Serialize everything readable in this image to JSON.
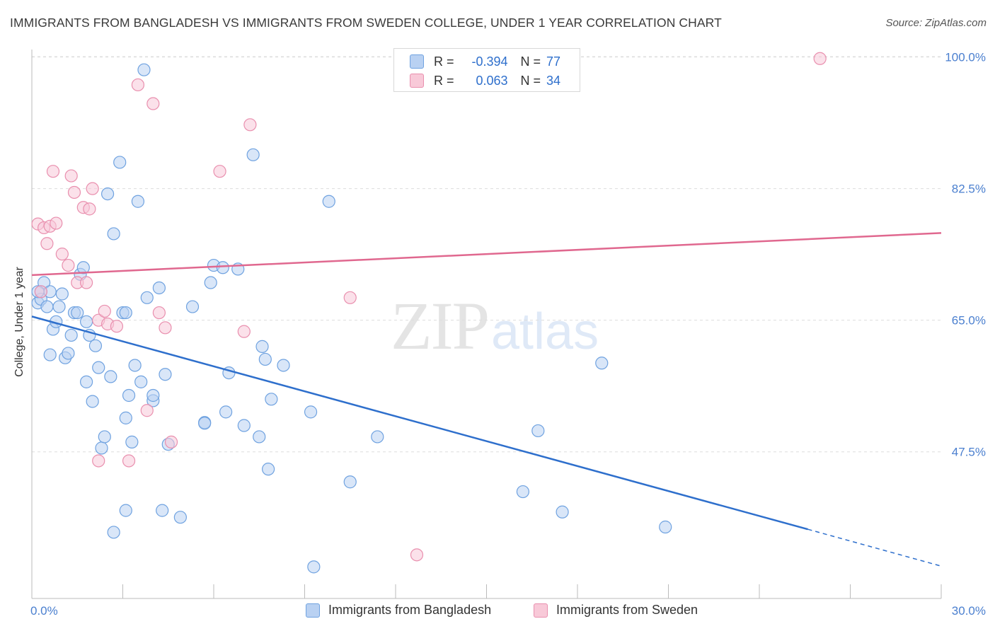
{
  "title": "IMMIGRANTS FROM BANGLADESH VS IMMIGRANTS FROM SWEDEN COLLEGE, UNDER 1 YEAR CORRELATION CHART",
  "source": "Source: ZipAtlas.com",
  "watermark": {
    "zip": "ZIP",
    "atlas": "atlas"
  },
  "legend_top": {
    "rows": [
      {
        "r_label": "R =",
        "r_value": "-0.394",
        "n_label": "N =",
        "n_value": "77"
      },
      {
        "r_label": "R =",
        "r_value": "0.063",
        "n_label": "N =",
        "n_value": "34"
      }
    ]
  },
  "chart_data": {
    "type": "scatter",
    "title": "IMMIGRANTS FROM BANGLADESH VS IMMIGRANTS FROM SWEDEN COLLEGE, UNDER 1 YEAR CORRELATION CHART",
    "xlabel": "",
    "ylabel": "College, Under 1 year",
    "xlim": [
      0,
      30
    ],
    "ylim": [
      28,
      101
    ],
    "x_tick_labels": [
      "0.0%",
      "30.0%"
    ],
    "y_ticks": [
      {
        "value": 100,
        "label": "100.0%"
      },
      {
        "value": 82.5,
        "label": "82.5%"
      },
      {
        "value": 65,
        "label": "65.0%"
      },
      {
        "value": 47.5,
        "label": "47.5%"
      }
    ],
    "grid": true,
    "legend_position": "bottom",
    "series": [
      {
        "name": "Immigrants from Bangladesh",
        "color": "#6fa2e0",
        "fill": "#b9d1f2",
        "r": -0.394,
        "n": 77,
        "trend": {
          "x0": 0,
          "y0": 65.5,
          "x1": 25.6,
          "y1": 37.2,
          "dash_to_x": 30,
          "dash_to_y": 32.3
        },
        "points": [
          [
            0.2,
            67.3
          ],
          [
            0.3,
            68.8
          ],
          [
            0.3,
            67.8
          ],
          [
            0.4,
            70.0
          ],
          [
            0.5,
            66.8
          ],
          [
            0.6,
            68.8
          ],
          [
            0.6,
            60.4
          ],
          [
            0.7,
            63.8
          ],
          [
            0.8,
            64.8
          ],
          [
            0.9,
            66.8
          ],
          [
            1.0,
            68.5
          ],
          [
            1.1,
            60.0
          ],
          [
            1.2,
            60.6
          ],
          [
            1.3,
            63.0
          ],
          [
            1.4,
            66.0
          ],
          [
            1.5,
            66.0
          ],
          [
            1.6,
            71.1
          ],
          [
            1.7,
            72.0
          ],
          [
            1.8,
            64.8
          ],
          [
            1.8,
            56.8
          ],
          [
            1.9,
            63.0
          ],
          [
            2.0,
            54.2
          ],
          [
            2.1,
            61.6
          ],
          [
            2.2,
            58.7
          ],
          [
            2.3,
            48.0
          ],
          [
            2.4,
            49.5
          ],
          [
            2.5,
            81.8
          ],
          [
            2.6,
            57.5
          ],
          [
            2.7,
            76.5
          ],
          [
            2.7,
            36.8
          ],
          [
            2.9,
            86.0
          ],
          [
            3.0,
            66.0
          ],
          [
            3.1,
            66.0
          ],
          [
            3.1,
            39.7
          ],
          [
            3.1,
            52.0
          ],
          [
            3.2,
            55.0
          ],
          [
            3.3,
            48.8
          ],
          [
            3.4,
            59.0
          ],
          [
            3.5,
            80.8
          ],
          [
            3.6,
            56.8
          ],
          [
            3.7,
            98.3
          ],
          [
            3.8,
            68.0
          ],
          [
            4.0,
            54.3
          ],
          [
            4.0,
            55.0
          ],
          [
            4.2,
            69.3
          ],
          [
            4.3,
            39.7
          ],
          [
            4.4,
            57.8
          ],
          [
            4.5,
            48.5
          ],
          [
            4.9,
            38.8
          ],
          [
            5.3,
            66.8
          ],
          [
            5.7,
            51.4
          ],
          [
            5.7,
            51.3
          ],
          [
            5.9,
            70.0
          ],
          [
            6.0,
            72.3
          ],
          [
            6.3,
            72.0
          ],
          [
            6.4,
            52.8
          ],
          [
            6.5,
            58.0
          ],
          [
            6.8,
            71.8
          ],
          [
            7.0,
            51.0
          ],
          [
            7.3,
            87.0
          ],
          [
            7.5,
            49.5
          ],
          [
            7.6,
            61.5
          ],
          [
            7.7,
            59.8
          ],
          [
            7.8,
            45.2
          ],
          [
            7.9,
            54.5
          ],
          [
            8.3,
            59.0
          ],
          [
            9.2,
            52.8
          ],
          [
            9.3,
            32.2
          ],
          [
            9.8,
            80.8
          ],
          [
            10.5,
            43.5
          ],
          [
            11.4,
            49.5
          ],
          [
            16.2,
            42.2
          ],
          [
            16.7,
            50.3
          ],
          [
            17.5,
            39.5
          ],
          [
            18.8,
            59.3
          ],
          [
            20.9,
            37.5
          ],
          [
            0.2,
            68.8
          ]
        ]
      },
      {
        "name": "Immigrants from Sweden",
        "color": "#e98fae",
        "fill": "#f8c9d8",
        "r": 0.063,
        "n": 34,
        "trend": {
          "x0": 0,
          "y0": 71.0,
          "x1": 30,
          "y1": 76.6
        },
        "points": [
          [
            0.2,
            77.8
          ],
          [
            0.3,
            68.8
          ],
          [
            0.4,
            77.3
          ],
          [
            0.5,
            75.2
          ],
          [
            0.6,
            77.5
          ],
          [
            0.7,
            84.8
          ],
          [
            0.8,
            77.9
          ],
          [
            1.0,
            73.8
          ],
          [
            1.2,
            72.3
          ],
          [
            1.3,
            84.2
          ],
          [
            1.4,
            82.0
          ],
          [
            1.5,
            70.0
          ],
          [
            1.7,
            80.0
          ],
          [
            1.8,
            70.0
          ],
          [
            1.9,
            79.8
          ],
          [
            2.0,
            82.5
          ],
          [
            2.2,
            65.0
          ],
          [
            2.4,
            66.2
          ],
          [
            2.5,
            64.5
          ],
          [
            2.8,
            64.2
          ],
          [
            3.2,
            46.3
          ],
          [
            3.5,
            96.3
          ],
          [
            3.8,
            53.0
          ],
          [
            4.0,
            93.8
          ],
          [
            4.2,
            66.0
          ],
          [
            4.4,
            64.0
          ],
          [
            4.6,
            48.8
          ],
          [
            6.2,
            84.8
          ],
          [
            7.0,
            63.5
          ],
          [
            7.2,
            91.0
          ],
          [
            10.5,
            68.0
          ],
          [
            12.7,
            33.8
          ],
          [
            26.0,
            99.8
          ],
          [
            2.2,
            46.3
          ]
        ]
      }
    ]
  }
}
